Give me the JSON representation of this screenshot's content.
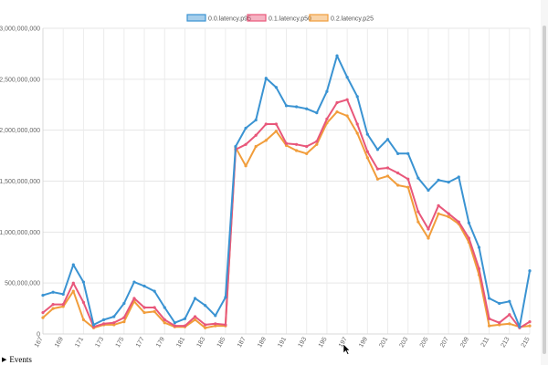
{
  "chart_data": {
    "type": "line",
    "legend_position": "top-center",
    "grid": true,
    "ylim": [
      0,
      3000000000
    ],
    "y_ticks": [
      "0",
      "500,000,000",
      "1,000,000,000",
      "1,500,000,000",
      "2,000,000,000",
      "2,500,000,000",
      "3,000,000,000"
    ],
    "x": [
      "167",
      "168",
      "169",
      "170",
      "171",
      "172",
      "173",
      "174",
      "175",
      "176",
      "177",
      "178",
      "179",
      "180",
      "181",
      "182",
      "183",
      "184",
      "185",
      "186",
      "187",
      "188",
      "189",
      "190",
      "191",
      "192",
      "193",
      "194",
      "195",
      "196",
      "197",
      "198",
      "199",
      "200",
      "201",
      "202",
      "203",
      "204",
      "205",
      "206",
      "207",
      "208",
      "209",
      "210",
      "211",
      "212",
      "213",
      "214",
      "215"
    ],
    "x_tick_labels": [
      "167",
      "169",
      "171",
      "173",
      "175",
      "177",
      "179",
      "181",
      "183",
      "185",
      "187",
      "189",
      "191",
      "193",
      "195",
      "197",
      "199",
      "201",
      "203",
      "205",
      "207",
      "209",
      "211",
      "213",
      "215"
    ],
    "series": [
      {
        "name": "0.0.latency.p95",
        "color": "#3a93d2",
        "values": [
          380000000,
          410000000,
          390000000,
          680000000,
          510000000,
          90000000,
          140000000,
          170000000,
          300000000,
          510000000,
          470000000,
          420000000,
          260000000,
          110000000,
          150000000,
          350000000,
          280000000,
          180000000,
          360000000,
          1840000000,
          2020000000,
          2100000000,
          2510000000,
          2420000000,
          2240000000,
          2230000000,
          2210000000,
          2170000000,
          2380000000,
          2730000000,
          2520000000,
          2330000000,
          1960000000,
          1810000000,
          1910000000,
          1770000000,
          1770000000,
          1530000000,
          1410000000,
          1510000000,
          1490000000,
          1540000000,
          1090000000,
          850000000,
          350000000,
          300000000,
          320000000,
          70000000,
          620000000
        ]
      },
      {
        "name": "0.1.latency.p50",
        "color": "#e8577a",
        "values": [
          210000000,
          290000000,
          290000000,
          500000000,
          310000000,
          70000000,
          100000000,
          110000000,
          160000000,
          350000000,
          260000000,
          260000000,
          140000000,
          80000000,
          80000000,
          170000000,
          90000000,
          100000000,
          90000000,
          1810000000,
          1860000000,
          1950000000,
          2060000000,
          2060000000,
          1870000000,
          1860000000,
          1840000000,
          1890000000,
          2110000000,
          2270000000,
          2300000000,
          2060000000,
          1790000000,
          1620000000,
          1630000000,
          1580000000,
          1520000000,
          1200000000,
          1030000000,
          1260000000,
          1180000000,
          1100000000,
          940000000,
          640000000,
          150000000,
          110000000,
          190000000,
          60000000,
          120000000
        ]
      },
      {
        "name": "0.2.latency.p25",
        "color": "#f19d3b",
        "values": [
          160000000,
          250000000,
          270000000,
          420000000,
          140000000,
          60000000,
          90000000,
          90000000,
          120000000,
          320000000,
          210000000,
          220000000,
          110000000,
          70000000,
          70000000,
          140000000,
          60000000,
          80000000,
          80000000,
          1830000000,
          1650000000,
          1840000000,
          1900000000,
          1990000000,
          1850000000,
          1800000000,
          1770000000,
          1860000000,
          2070000000,
          2180000000,
          2140000000,
          1970000000,
          1730000000,
          1520000000,
          1550000000,
          1460000000,
          1440000000,
          1100000000,
          940000000,
          1180000000,
          1150000000,
          1080000000,
          900000000,
          580000000,
          80000000,
          90000000,
          100000000,
          70000000,
          80000000
        ]
      }
    ]
  },
  "events_label": "Events",
  "events_icon": "triangle-right-icon"
}
